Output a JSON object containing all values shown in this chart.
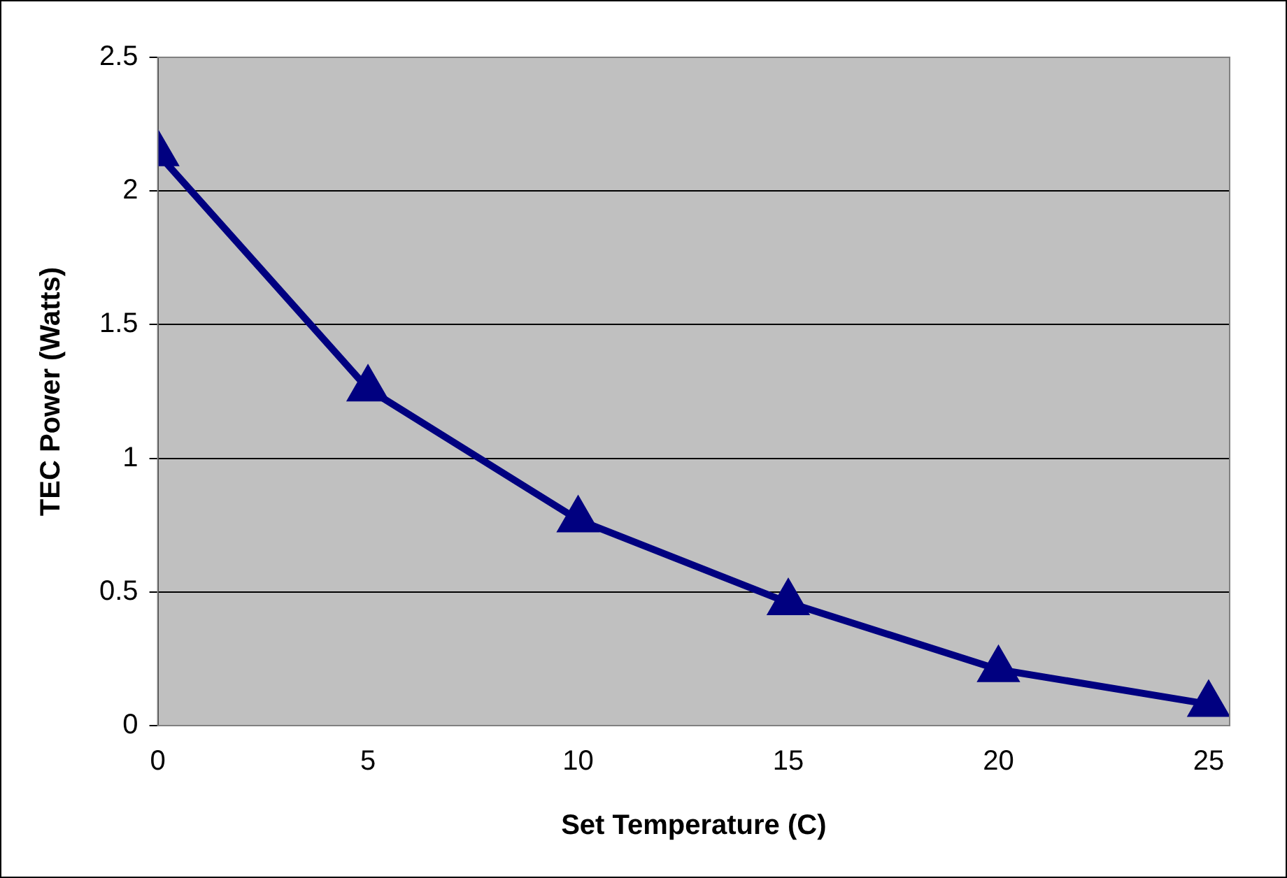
{
  "chart_data": {
    "type": "line",
    "xlabel": "Set Temperature (C)",
    "ylabel": "TEC Power (Watts)",
    "x": [
      0,
      5,
      10,
      15,
      20,
      25
    ],
    "series": [
      {
        "color": "#000080",
        "values": [
          2.14,
          1.26,
          0.77,
          0.46,
          0.21,
          0.08
        ]
      }
    ],
    "xlim": [
      0,
      25.5
    ],
    "xticks": [
      0,
      5,
      10,
      15,
      20,
      25
    ],
    "ylim": [
      0,
      2.5
    ],
    "yticks": [
      0,
      0.5,
      1,
      1.5,
      2,
      2.5
    ],
    "grid": "y",
    "legend": false,
    "marker": "triangle",
    "line_style": "solid"
  }
}
